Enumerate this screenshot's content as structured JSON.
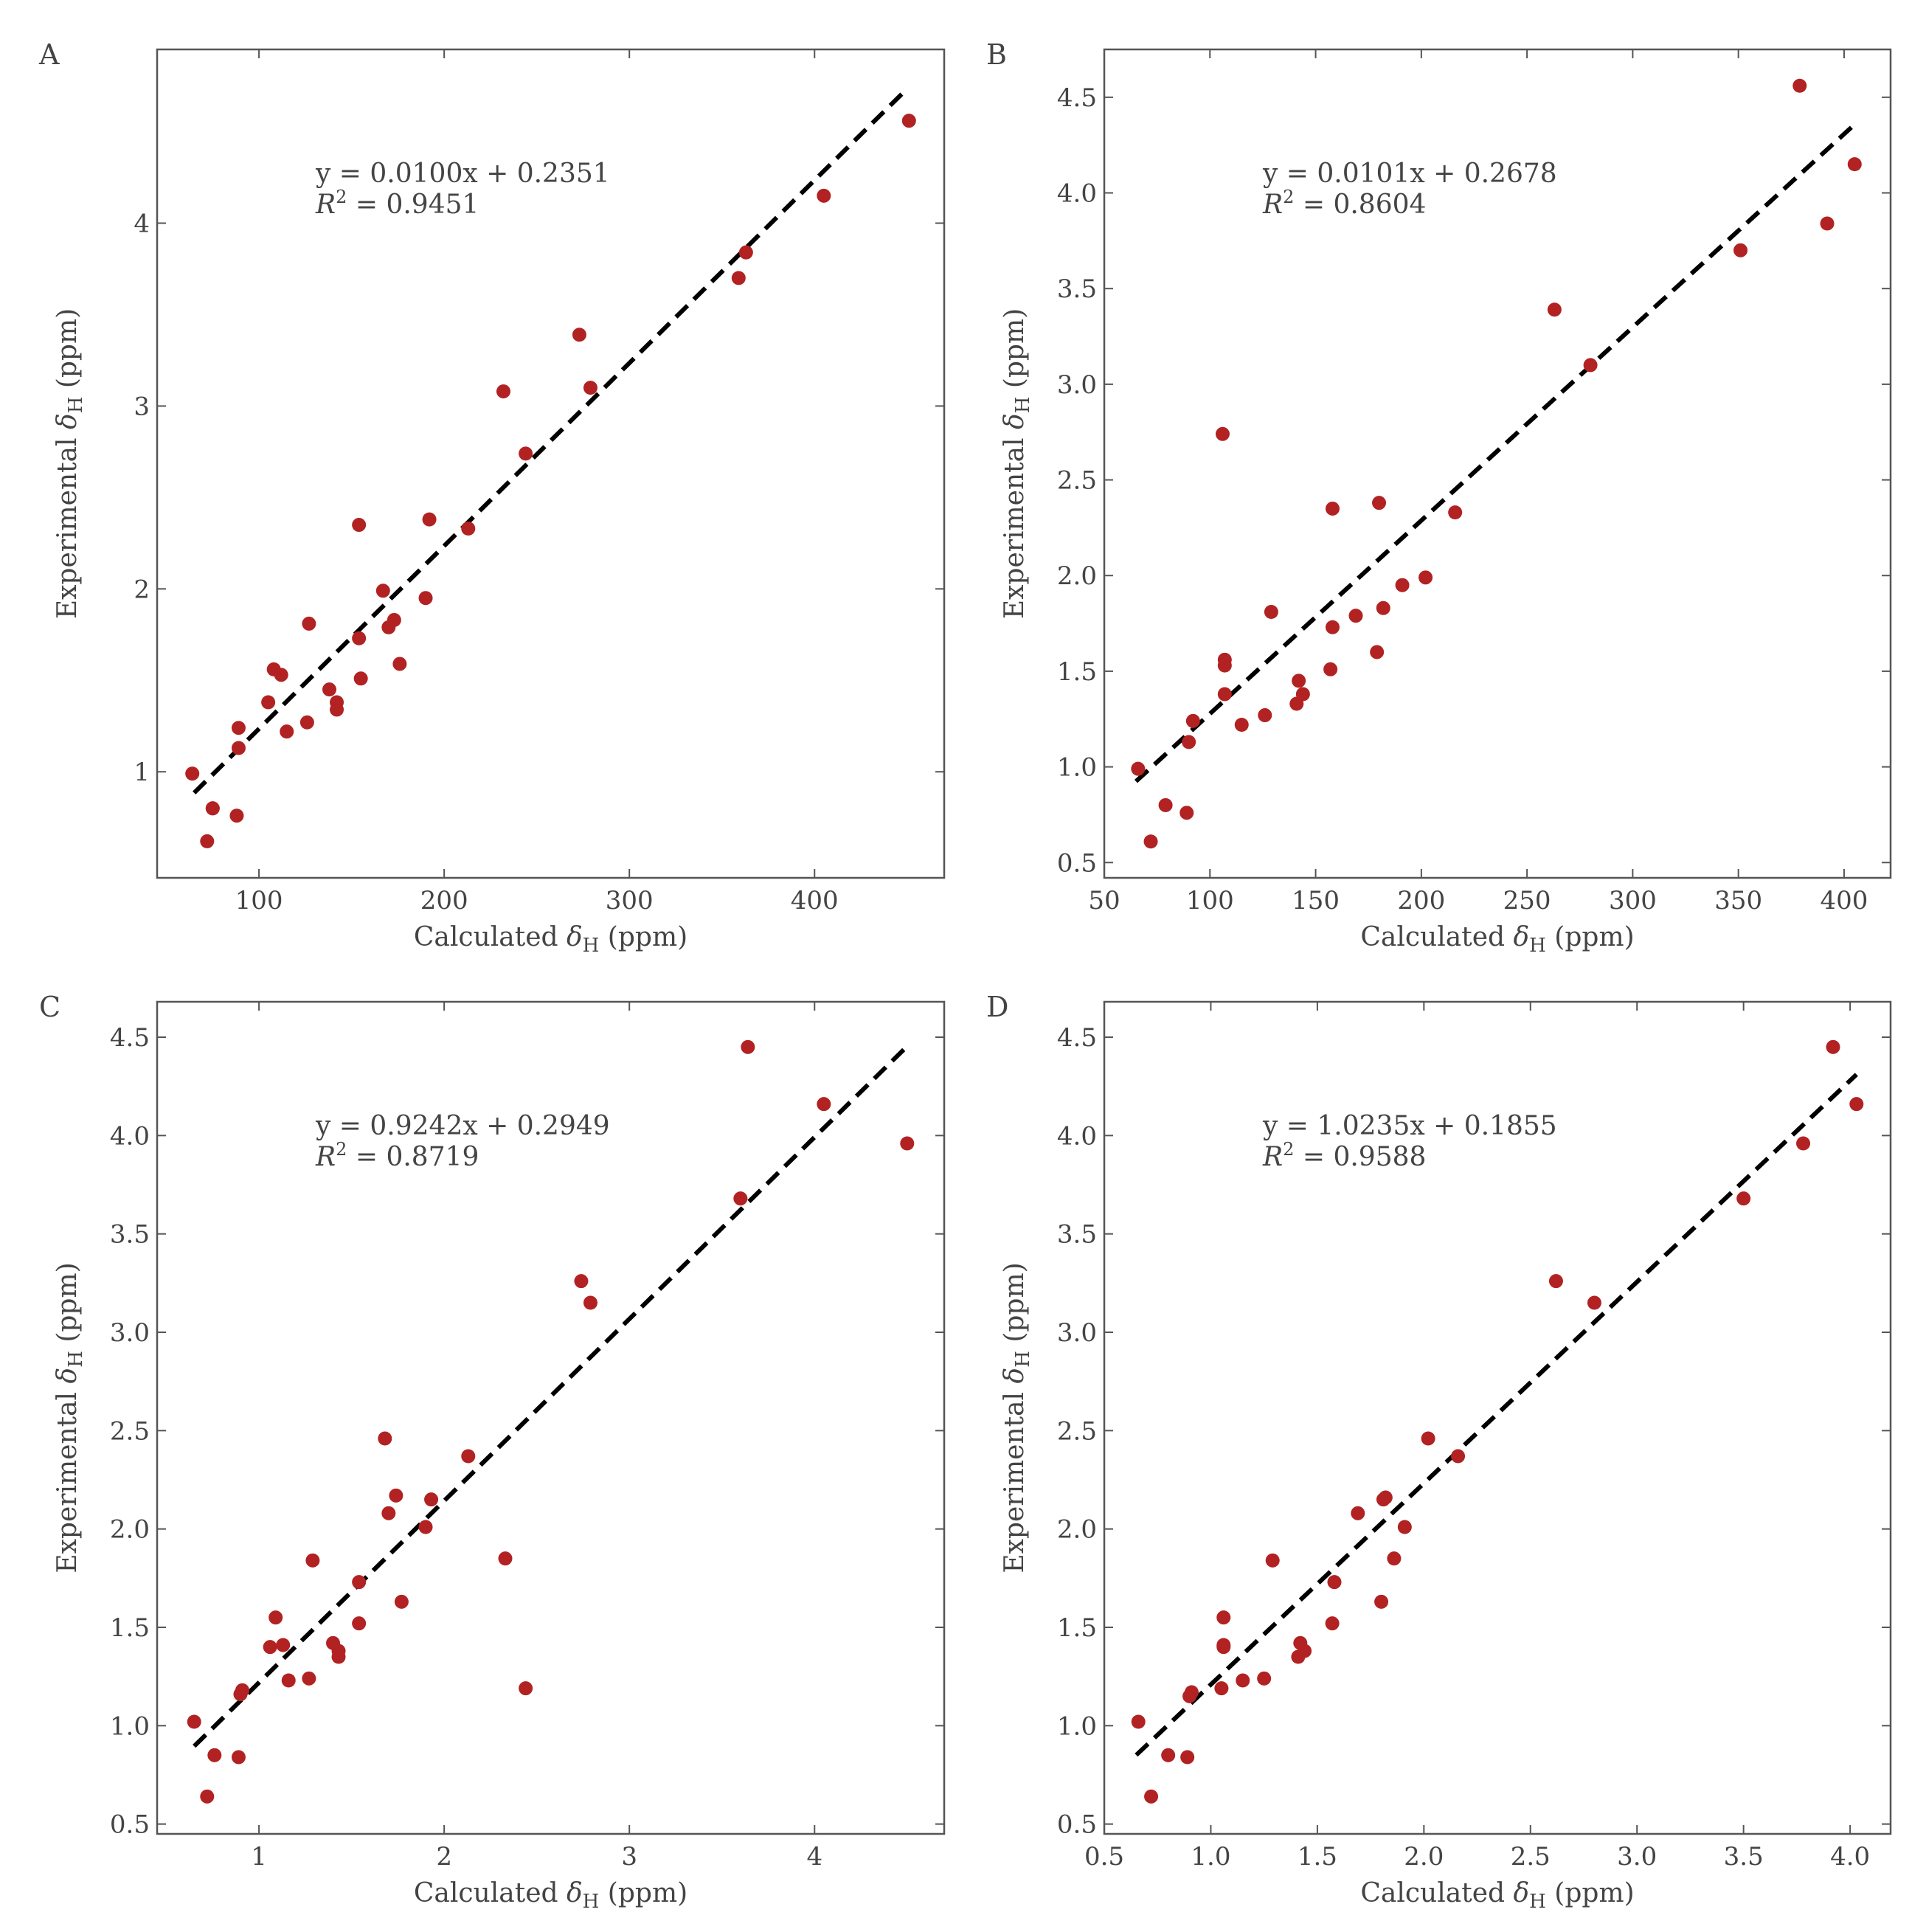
{
  "colors": {
    "point": "#b22222",
    "fit": "#000000",
    "frame": "#555555",
    "text": "#444444"
  },
  "chart_data": [
    {
      "panel": "A",
      "type": "scatter",
      "xlabel_prefix": "Calculated",
      "ylabel_prefix": "Experimental",
      "symbol": "δ",
      "symbol_sub": "H",
      "unit": "(ppm)",
      "xlim": [
        45,
        470
      ],
      "ylim": [
        0.42,
        4.95
      ],
      "xticks": [
        100,
        200,
        300,
        400
      ],
      "yticks": [
        1,
        2,
        3,
        4
      ],
      "xtick_labels": [
        "100",
        "200",
        "300",
        "400"
      ],
      "ytick_labels": [
        "1",
        "2",
        "3",
        "4"
      ],
      "equation": "y = 0.0100x + 0.2351",
      "r2_label": "R",
      "r2_sup": "2",
      "r2_value": " = 0.9451",
      "fit": {
        "slope": 0.01,
        "intercept": 0.2351,
        "x_range": [
          65,
          450
        ]
      },
      "x": [
        64,
        72,
        75,
        75,
        88,
        89,
        89,
        105,
        108,
        112,
        115,
        126,
        127,
        138,
        142,
        142,
        154,
        154,
        155,
        167,
        170,
        173,
        176,
        190,
        192,
        213,
        232,
        244,
        273,
        279,
        359,
        363,
        405,
        451
      ],
      "y": [
        0.99,
        0.62,
        0.8,
        0.8,
        0.76,
        1.13,
        1.24,
        1.38,
        1.56,
        1.53,
        1.22,
        1.27,
        1.81,
        1.45,
        1.38,
        1.34,
        2.35,
        1.73,
        1.51,
        1.99,
        1.79,
        1.83,
        1.59,
        1.95,
        2.38,
        2.33,
        3.08,
        2.74,
        3.39,
        3.1,
        3.7,
        3.84,
        4.15,
        4.56
      ]
    },
    {
      "panel": "B",
      "type": "scatter",
      "xlabel_prefix": "Calculated",
      "ylabel_prefix": "Experimental",
      "symbol": "δ",
      "symbol_sub": "H",
      "unit": "(ppm)",
      "xlim": [
        50,
        422
      ],
      "ylim": [
        0.42,
        4.75
      ],
      "xticks": [
        50,
        100,
        150,
        200,
        250,
        300,
        350,
        400
      ],
      "yticks": [
        0.5,
        1.0,
        1.5,
        2.0,
        2.5,
        3.0,
        3.5,
        4.0,
        4.5
      ],
      "xtick_labels": [
        "50",
        "100",
        "150",
        "200",
        "250",
        "300",
        "350",
        "400"
      ],
      "ytick_labels": [
        "0.5",
        "1.0",
        "1.5",
        "2.0",
        "2.5",
        "3.0",
        "3.5",
        "4.0",
        "4.5"
      ],
      "equation": "y = 0.0101x + 0.2678",
      "r2_label": "R",
      "r2_sup": "2",
      "r2_value": " = 0.8604",
      "fit": {
        "slope": 0.0101,
        "intercept": 0.2678,
        "x_range": [
          65,
          404
        ]
      },
      "x": [
        66,
        72,
        79,
        89,
        90,
        92,
        106,
        107,
        107,
        107,
        115,
        126,
        129,
        141,
        142,
        144,
        157,
        158,
        158,
        169,
        179,
        180,
        182,
        191,
        202,
        216,
        263,
        280,
        351,
        379,
        392,
        405
      ],
      "y": [
        0.99,
        0.61,
        0.8,
        0.76,
        1.13,
        1.24,
        2.74,
        1.56,
        1.53,
        1.38,
        1.22,
        1.27,
        1.81,
        1.33,
        1.45,
        1.38,
        1.51,
        1.73,
        2.35,
        1.79,
        1.6,
        2.38,
        1.83,
        1.95,
        1.99,
        2.33,
        3.39,
        3.1,
        3.7,
        4.56,
        3.84,
        4.15
      ]
    },
    {
      "panel": "C",
      "type": "scatter",
      "xlabel_prefix": "Calculated",
      "ylabel_prefix": "Experimental",
      "symbol": "δ",
      "symbol_sub": "H",
      "unit": "(ppm)",
      "xlim": [
        0.45,
        4.7
      ],
      "ylim": [
        0.45,
        4.68
      ],
      "xticks": [
        1,
        2,
        3,
        4
      ],
      "yticks": [
        0.5,
        1.0,
        1.5,
        2.0,
        2.5,
        3.0,
        3.5,
        4.0,
        4.5
      ],
      "xtick_labels": [
        "1",
        "2",
        "3",
        "4"
      ],
      "ytick_labels": [
        "0.5",
        "1.0",
        "1.5",
        "2.0",
        "2.5",
        "3.0",
        "3.5",
        "4.0",
        "4.5"
      ],
      "equation": "y = 0.9242x + 0.2949",
      "r2_label": "R",
      "r2_sup": "2",
      "r2_value": " = 0.8719",
      "fit": {
        "slope": 0.9242,
        "intercept": 0.2949,
        "x_range": [
          0.65,
          4.5
        ]
      },
      "x": [
        0.65,
        0.72,
        0.76,
        0.89,
        0.9,
        0.91,
        1.06,
        1.09,
        1.13,
        1.16,
        1.27,
        1.29,
        1.4,
        1.43,
        1.43,
        1.54,
        1.54,
        1.68,
        1.7,
        1.74,
        1.77,
        1.9,
        1.93,
        2.13,
        2.33,
        2.44,
        2.74,
        2.79,
        3.6,
        3.64,
        4.05,
        4.5
      ],
      "y": [
        1.02,
        0.64,
        0.85,
        0.84,
        1.16,
        1.18,
        1.4,
        1.55,
        1.41,
        1.23,
        1.24,
        1.84,
        1.42,
        1.38,
        1.35,
        1.73,
        1.52,
        2.46,
        2.08,
        2.17,
        1.63,
        2.01,
        2.15,
        2.37,
        1.85,
        1.19,
        3.26,
        3.15,
        3.68,
        4.45,
        4.16,
        3.96
      ]
    },
    {
      "panel": "D",
      "type": "scatter",
      "xlabel_prefix": "Calculated",
      "ylabel_prefix": "Experimental",
      "symbol": "δ",
      "symbol_sub": "H",
      "unit": "(ppm)",
      "xlim": [
        0.5,
        4.19
      ],
      "ylim": [
        0.45,
        4.68
      ],
      "xticks": [
        0.5,
        1.0,
        1.5,
        2.0,
        2.5,
        3.0,
        3.5,
        4.0
      ],
      "yticks": [
        0.5,
        1.0,
        1.5,
        2.0,
        2.5,
        3.0,
        3.5,
        4.0,
        4.5
      ],
      "xtick_labels": [
        "0.5",
        "1.0",
        "1.5",
        "2.0",
        "2.5",
        "3.0",
        "3.5",
        "4.0"
      ],
      "ytick_labels": [
        "0.5",
        "1.0",
        "1.5",
        "2.0",
        "2.5",
        "3.0",
        "3.5",
        "4.0",
        "4.5"
      ],
      "equation": "y = 1.0235x + 0.1855",
      "r2_label": "R",
      "r2_sup": "2",
      "r2_value": " = 0.9588",
      "fit": {
        "slope": 1.0235,
        "intercept": 0.1855,
        "x_range": [
          0.65,
          4.03
        ]
      },
      "x": [
        0.66,
        0.72,
        0.8,
        0.89,
        0.9,
        0.91,
        1.05,
        1.06,
        1.06,
        1.06,
        1.15,
        1.25,
        1.29,
        1.41,
        1.42,
        1.44,
        1.57,
        1.58,
        1.69,
        1.8,
        1.81,
        1.82,
        1.86,
        1.91,
        2.02,
        2.16,
        2.62,
        2.8,
        3.5,
        3.78,
        3.92,
        4.03
      ],
      "y": [
        1.02,
        0.64,
        0.85,
        0.84,
        1.15,
        1.17,
        1.19,
        1.4,
        1.41,
        1.55,
        1.23,
        1.24,
        1.84,
        1.35,
        1.42,
        1.38,
        1.52,
        1.73,
        2.08,
        1.63,
        2.15,
        2.16,
        1.85,
        2.01,
        2.46,
        2.37,
        3.26,
        3.15,
        3.68,
        3.96,
        4.45,
        4.16
      ]
    }
  ]
}
